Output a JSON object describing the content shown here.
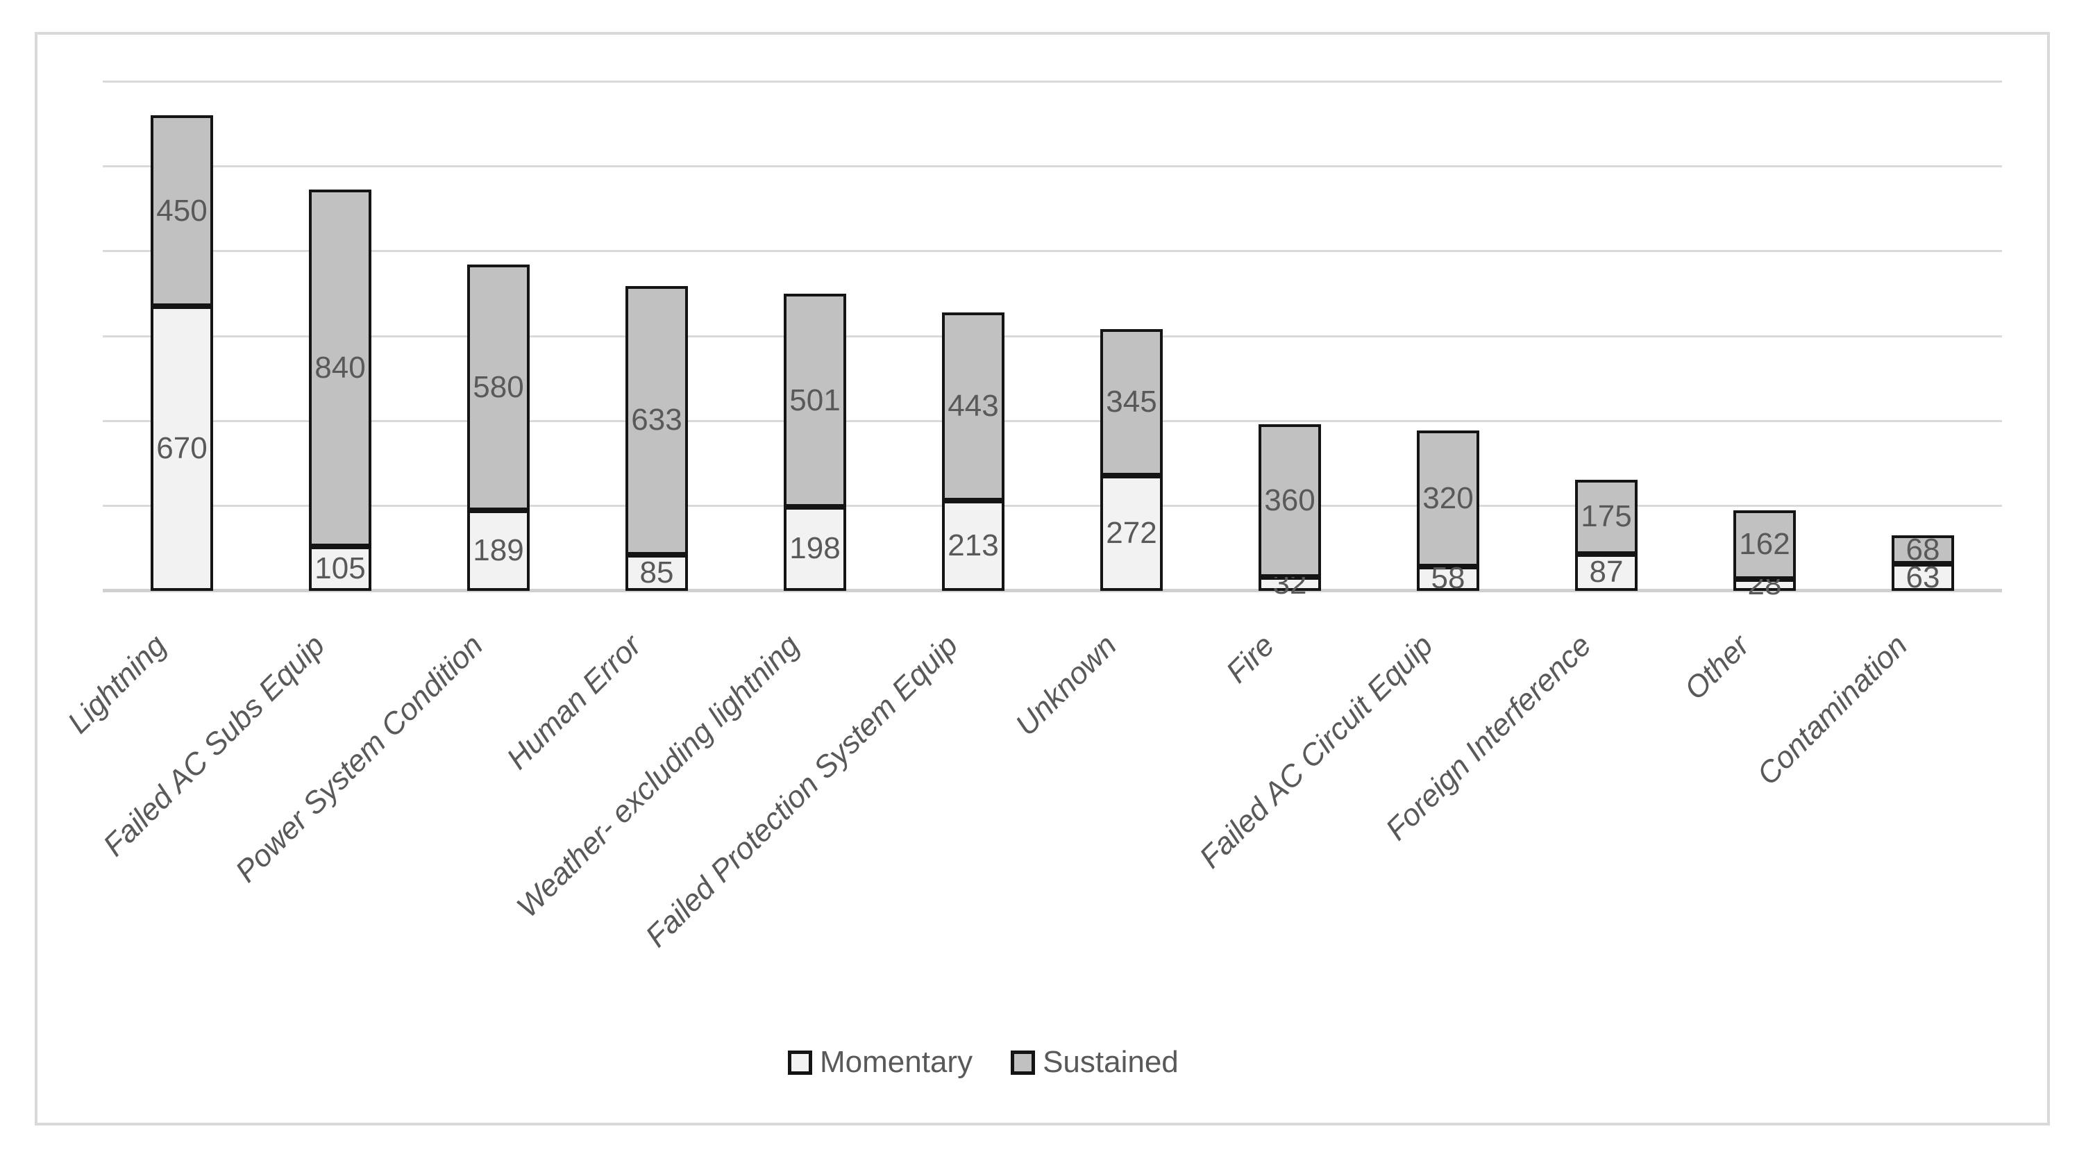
{
  "chart_data": {
    "type": "bar",
    "stacked": true,
    "title": "",
    "xlabel": "",
    "ylabel": "",
    "ylim": [
      0,
      1200
    ],
    "gridline_step": 200,
    "grid": true,
    "y_tick_labels_visible": false,
    "legend_position": "bottom",
    "data_labels": "center",
    "categories": [
      "Lightning",
      "Failed AC Subs Equip",
      "Power System Condition",
      "Human Error",
      "Weather- excluding lightning",
      "Failed Protection System Equip",
      "Unknown",
      "Fire",
      "Failed AC Circuit Equip",
      "Foreign Interference",
      "Other",
      "Contamination"
    ],
    "series": [
      {
        "name": "Momentary",
        "color": "#f2f2f2",
        "values": [
          670,
          105,
          189,
          85,
          198,
          213,
          272,
          32,
          58,
          87,
          28,
          63
        ]
      },
      {
        "name": "Sustained",
        "color": "#c1c1c1",
        "values": [
          450,
          840,
          580,
          633,
          501,
          443,
          345,
          360,
          320,
          175,
          162,
          68
        ]
      }
    ]
  },
  "colors": {
    "bar_border": "#141414",
    "gridline": "#d9d9d9",
    "axis_line": "#d0d0d0",
    "text": "#595959",
    "frame_border": "#d9d9d9",
    "background": "#ffffff"
  }
}
